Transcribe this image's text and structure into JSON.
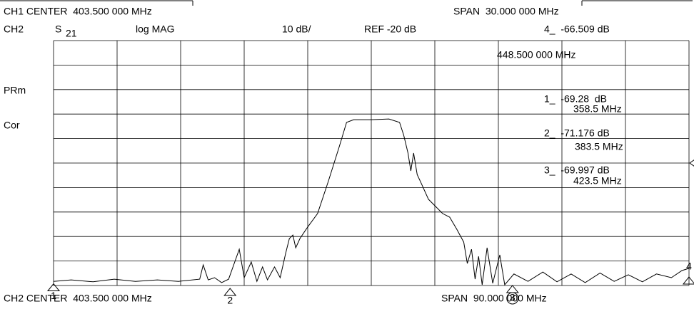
{
  "chart_data": {
    "type": "line",
    "header": {
      "ch1_center": "CH1 CENTER  403.500 000 MHz",
      "ch1_span": "SPAN  30.000 000 MHz",
      "channel": "CH2",
      "param": "S",
      "param_sub": "21",
      "format": "log MAG",
      "scale": "10 dB/",
      "ref": "REF -20 dB",
      "side": [
        "PRm",
        "Cor"
      ],
      "footer_center": "CH2 CENTER  403.500 000 MHz",
      "footer_span": "SPAN  90.000 000 MHz"
    },
    "ref_level": -20,
    "x": [
      358.5,
      361.0,
      364.1,
      367.1,
      370.1,
      373.2,
      376.2,
      379.2,
      379.7,
      380.4,
      381.3,
      382.3,
      383.3,
      384.8,
      385.5,
      386.5,
      387.3,
      388.1,
      388.8,
      389.8,
      390.6,
      391.4,
      391.9,
      392.4,
      392.8,
      393.4,
      394.4,
      395.9,
      397.4,
      399.0,
      400.0,
      401.0,
      403.5,
      406.0,
      407.5,
      408.1,
      408.7,
      409.1,
      409.5,
      410.0,
      410.6,
      411.6,
      412.6,
      413.6,
      414.6,
      415.6,
      416.6,
      417.1,
      417.7,
      418.2,
      418.7,
      419.2,
      419.9,
      420.7,
      421.7,
      422.4,
      423.7,
      425.7,
      427.8,
      429.8,
      431.8,
      433.8,
      435.9,
      437.9,
      439.9,
      441.9,
      443.9,
      446.0,
      447.5,
      448.5
    ],
    "series": [
      {
        "color": "#000000",
        "values": [
          -68.3,
          -67.7,
          -68.5,
          -67.4,
          -68.3,
          -67.7,
          -68.3,
          -67.4,
          -61.6,
          -67.7,
          -66.8,
          -68.8,
          -67.4,
          -55.2,
          -66.8,
          -60.4,
          -68.3,
          -62.4,
          -67.7,
          -62.4,
          -66.8,
          -56.6,
          -50.8,
          -49.4,
          -54.6,
          -50.8,
          -46.5,
          -40.6,
          -27.6,
          -13.0,
          -3.4,
          -2.3,
          -2.3,
          -2.0,
          -3.4,
          -8.7,
          -15.9,
          -23.2,
          -15.9,
          -24.7,
          -28.4,
          -34.8,
          -37.7,
          -40.6,
          -42.1,
          -47.0,
          -52.3,
          -61.0,
          -55.2,
          -67.4,
          -58.1,
          -69.7,
          -54.6,
          -69.1,
          -57.5,
          -69.7,
          -65.3,
          -68.3,
          -64.5,
          -68.5,
          -65.3,
          -68.8,
          -64.9,
          -68.3,
          -65.6,
          -68.5,
          -65.3,
          -66.8,
          -63.9,
          -63.0
        ]
      }
    ],
    "xlim": [
      358.5,
      448.5
    ],
    "ylim": [
      -70,
      30
    ],
    "xticks": [
      358.5,
      367.5,
      376.5,
      385.5,
      394.5,
      403.5,
      412.5,
      421.5,
      430.5,
      439.5,
      448.5
    ],
    "yticks": [
      -70,
      -60,
      -50,
      -40,
      -30,
      -20,
      -10,
      0,
      10,
      20,
      30
    ],
    "grid": true,
    "markers": [
      {
        "name": "1",
        "x": 358.5,
        "value": -69.28,
        "readout": "1_  -69.28  dB",
        "freq": "358.5 MHz"
      },
      {
        "name": "2",
        "x": 383.5,
        "value": -71.176,
        "readout": "2_  -71.176 dB",
        "freq": "383.5 MHz"
      },
      {
        "name": "3",
        "x": 423.5,
        "value": -69.997,
        "readout": "3_  -69.997 dB",
        "freq": "423.5 MHz"
      },
      {
        "name": "4",
        "x": 448.5,
        "value": -66.509,
        "readout": "4_  -66.509 dB",
        "freq": "448.500 000 MHz"
      }
    ]
  }
}
